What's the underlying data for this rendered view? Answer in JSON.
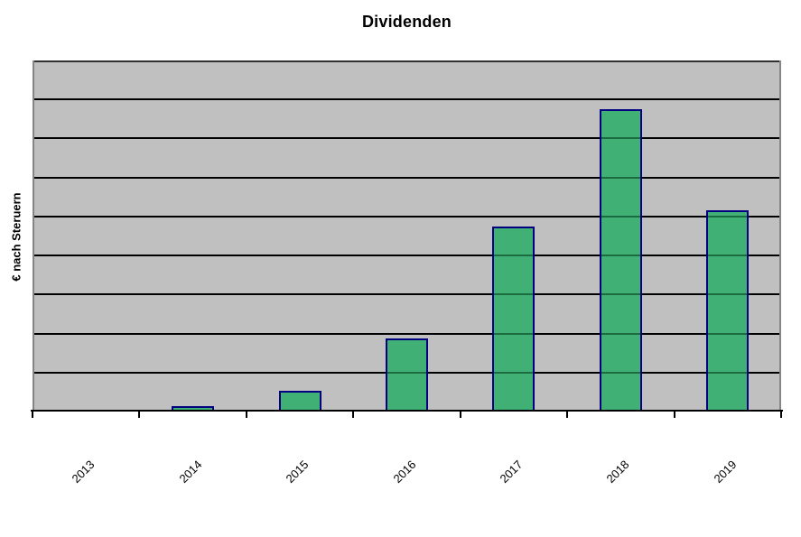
{
  "page": {
    "background": "#ffffff"
  },
  "chart_data": {
    "type": "bar",
    "title": "Dividenden",
    "xlabel": "",
    "ylabel": "€ nach Steruern",
    "categories": [
      "2013",
      "2014",
      "2015",
      "2016",
      "2017",
      "2018",
      "2019"
    ],
    "values": [
      0,
      0.13,
      0.54,
      1.87,
      4.75,
      7.76,
      5.16
    ],
    "value_units": "relative grid units (y axis has no numeric tick labels; 1 unit = one horizontal gridline interval)",
    "ylim": [
      0,
      9
    ],
    "gridline_interval": 1,
    "grid": "horizontal-only",
    "legend": "none",
    "x_tick_rotation_deg": -45,
    "series_count": 1,
    "colors": {
      "plot_background": "#C0C0C0",
      "bar_fill": "#41B075",
      "bar_border": "#000080",
      "gridline": "#000000",
      "gridline_over_bar": "#1B6B41",
      "plot_frame": "#858585",
      "axis_line": "#000000",
      "text": "#000000"
    }
  }
}
